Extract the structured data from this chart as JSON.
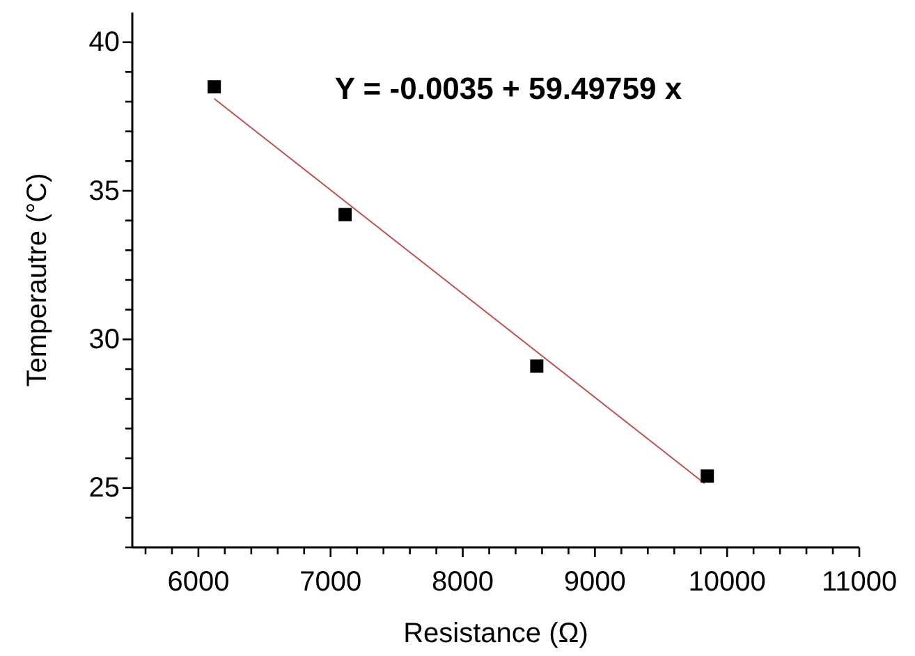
{
  "chart_data": {
    "type": "scatter",
    "xlabel": "Resistance (Ω)",
    "ylabel": "Temperautre (°C)",
    "annotations": [
      "Y = -0.0035 + 59.49759 x"
    ],
    "xlim": [
      5500,
      11000
    ],
    "ylim": [
      23,
      41
    ],
    "xticks": [
      {
        "value": 5600,
        "label": null
      },
      {
        "value": 5800,
        "label": null
      },
      6000,
      {
        "value": 6200,
        "label": null
      },
      {
        "value": 6400,
        "label": null
      },
      {
        "value": 6600,
        "label": null
      },
      {
        "value": 6800,
        "label": null
      },
      7000,
      {
        "value": 7200,
        "label": null
      },
      {
        "value": 7400,
        "label": null
      },
      {
        "value": 7600,
        "label": null
      },
      {
        "value": 7800,
        "label": null
      },
      8000,
      {
        "value": 8200,
        "label": null
      },
      {
        "value": 8400,
        "label": null
      },
      {
        "value": 8600,
        "label": null
      },
      {
        "value": 8800,
        "label": null
      },
      9000,
      {
        "value": 9200,
        "label": null
      },
      {
        "value": 9400,
        "label": null
      },
      {
        "value": 9600,
        "label": null
      },
      {
        "value": 9800,
        "label": null
      },
      10000,
      {
        "value": 10200,
        "label": null
      },
      {
        "value": 10400,
        "label": null
      },
      {
        "value": 10600,
        "label": null
      },
      {
        "value": 10800,
        "label": null
      },
      11000
    ],
    "yticks": [
      {
        "value": 23,
        "label": null
      },
      {
        "value": 24,
        "label": null
      },
      25,
      {
        "value": 26,
        "label": null
      },
      {
        "value": 27,
        "label": null
      },
      {
        "value": 28,
        "label": null
      },
      {
        "value": 29,
        "label": null
      },
      30,
      {
        "value": 31,
        "label": null
      },
      {
        "value": 32,
        "label": null
      },
      {
        "value": 33,
        "label": null
      },
      {
        "value": 34,
        "label": null
      },
      35,
      {
        "value": 36,
        "label": null
      },
      {
        "value": 37,
        "label": null
      },
      {
        "value": 38,
        "label": null
      },
      {
        "value": 39,
        "label": null
      },
      40
    ],
    "grid": false,
    "marker": "square",
    "series": [
      {
        "color": "#000000",
        "x": [
          6120,
          7110,
          8560,
          9850
        ],
        "values": [
          38.5,
          34.2,
          29.1,
          25.4
        ]
      },
      {
        "type": "line",
        "color": "#c0504d",
        "marker": "none",
        "line_style": "solid",
        "x": [
          6120,
          9830
        ],
        "values": [
          38.1,
          25.15
        ]
      }
    ]
  }
}
